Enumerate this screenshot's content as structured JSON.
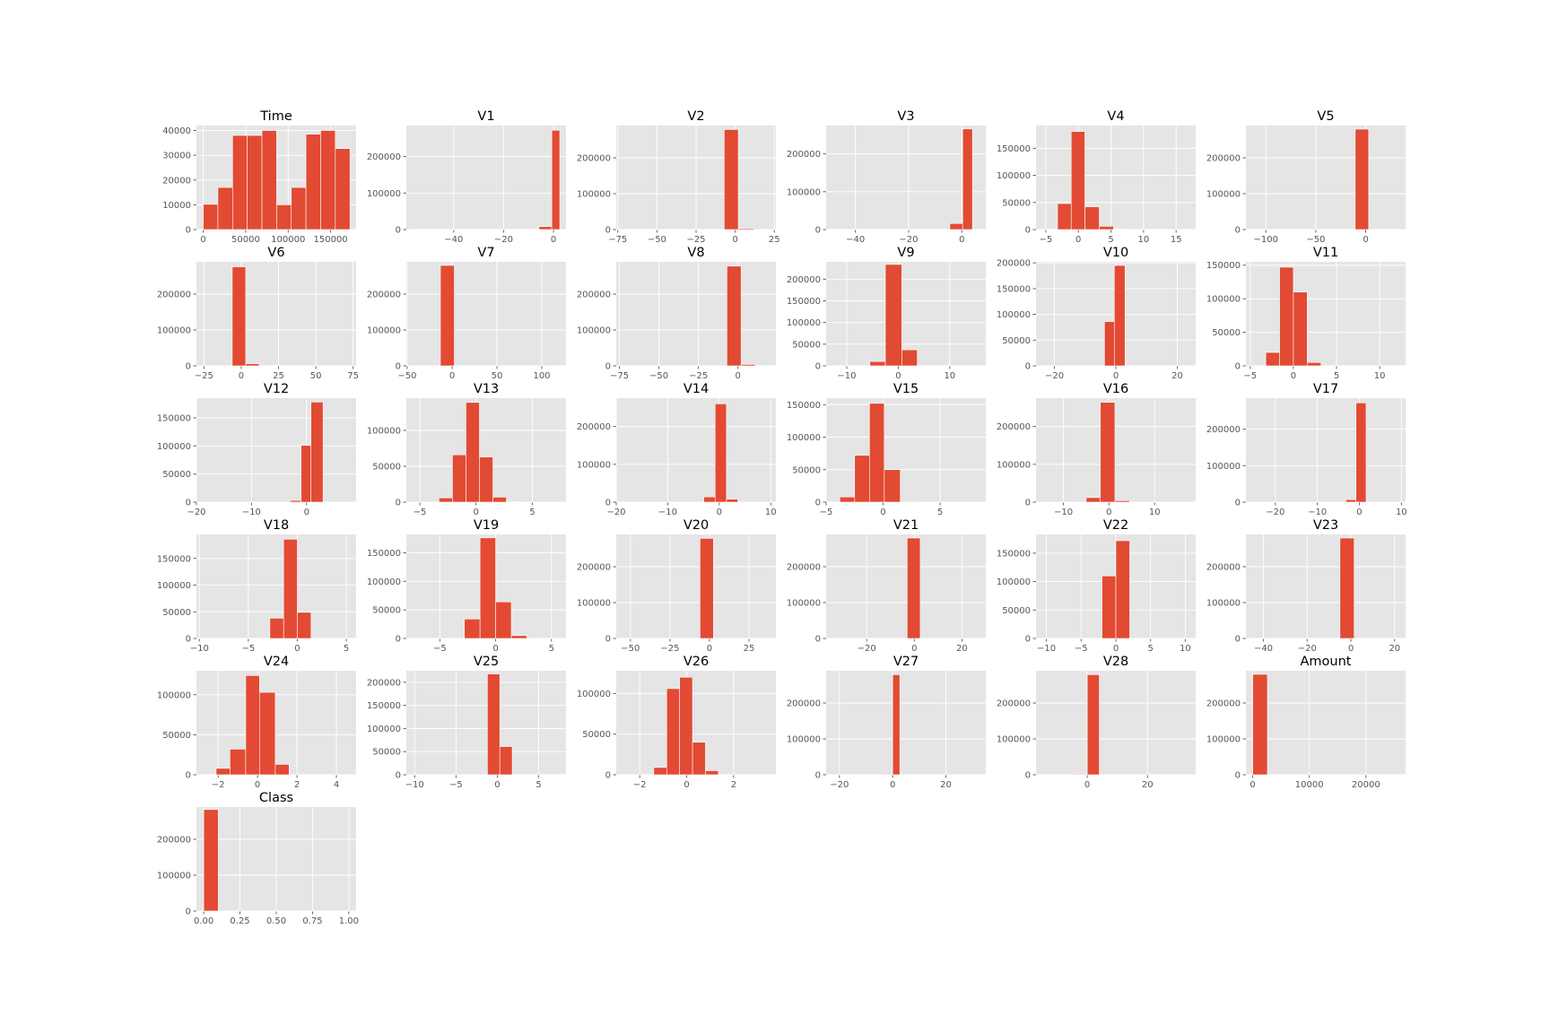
{
  "chart_data": [
    {
      "type": "bar",
      "title": "Time",
      "xlim": [
        -8000,
        180000
      ],
      "ylim": [
        0,
        42000
      ],
      "xticks": [
        0,
        50000,
        100000,
        150000
      ],
      "yticks": [
        0,
        10000,
        20000,
        30000,
        40000
      ],
      "bins": [
        [
          0,
          17280,
          10200
        ],
        [
          17280,
          34560,
          17000
        ],
        [
          34560,
          51840,
          38000
        ],
        [
          51840,
          69120,
          38000
        ],
        [
          69120,
          86400,
          40000
        ],
        [
          86400,
          103680,
          10000
        ],
        [
          103680,
          120960,
          17000
        ],
        [
          120960,
          138240,
          38500
        ],
        [
          138240,
          155520,
          40000
        ],
        [
          155520,
          172800,
          32700
        ]
      ]
    },
    {
      "type": "bar",
      "title": "V1",
      "xlim": [
        -59,
        5
      ],
      "ylim": [
        0,
        285000
      ],
      "xticks": [
        -40,
        -20,
        0
      ],
      "yticks": [
        0,
        100000,
        200000
      ],
      "bins": [
        [
          -5.8,
          -0.7,
          8000
        ],
        [
          -0.7,
          2.5,
          272000
        ]
      ]
    },
    {
      "type": "bar",
      "title": "V2",
      "xlim": [
        -76,
        26
      ],
      "ylim": [
        0,
        290000
      ],
      "xticks": [
        -75,
        -50,
        -25,
        0,
        25
      ],
      "yticks": [
        0,
        100000,
        200000
      ],
      "bins": [
        [
          -7,
          2,
          279000
        ],
        [
          2,
          12,
          3000
        ]
      ]
    },
    {
      "type": "bar",
      "title": "V3",
      "xlim": [
        -51,
        9
      ],
      "ylim": [
        0,
        275000
      ],
      "xticks": [
        -40,
        -20,
        0
      ],
      "yticks": [
        0,
        100000,
        200000
      ],
      "bins": [
        [
          -4.5,
          0.3,
          16000
        ],
        [
          0.3,
          4,
          266000
        ]
      ]
    },
    {
      "type": "bar",
      "title": "V4",
      "xlim": [
        -6.5,
        18
      ],
      "ylim": [
        0,
        192000
      ],
      "xticks": [
        -5,
        0,
        5,
        10,
        15
      ],
      "yticks": [
        0,
        50000,
        100000,
        150000
      ],
      "bins": [
        [
          -3.2,
          -1.1,
          48000
        ],
        [
          -1.1,
          1,
          181000
        ],
        [
          1,
          3.2,
          42000
        ],
        [
          3.2,
          5.4,
          6000
        ],
        [
          5.4,
          7.5,
          800
        ]
      ]
    },
    {
      "type": "bar",
      "title": "V5",
      "xlim": [
        -120,
        40
      ],
      "ylim": [
        0,
        290000
      ],
      "xticks": [
        -100,
        -50,
        0
      ],
      "yticks": [
        0,
        100000,
        200000
      ],
      "bins": [
        [
          -10.5,
          3,
          280000
        ],
        [
          3,
          16,
          500
        ]
      ]
    },
    {
      "type": "bar",
      "title": "V6",
      "xlim": [
        -30,
        77
      ],
      "ylim": [
        0,
        290000
      ],
      "xticks": [
        -25,
        0,
        25,
        50,
        75
      ],
      "yticks": [
        0,
        100000,
        200000
      ],
      "bins": [
        [
          -6,
          3,
          276000
        ],
        [
          3,
          12,
          6000
        ]
      ]
    },
    {
      "type": "bar",
      "title": "V7",
      "xlim": [
        -51,
        127
      ],
      "ylim": [
        0,
        290000
      ],
      "xticks": [
        -50,
        0,
        50,
        100
      ],
      "yticks": [
        0,
        100000,
        200000
      ],
      "bins": [
        [
          -13,
          2.5,
          280000
        ]
      ]
    },
    {
      "type": "bar",
      "title": "V8",
      "xlim": [
        -77,
        24
      ],
      "ylim": [
        0,
        290000
      ],
      "xticks": [
        -75,
        -50,
        -25,
        0
      ],
      "yticks": [
        0,
        100000,
        200000
      ],
      "bins": [
        [
          -7,
          2,
          278000
        ],
        [
          2,
          11,
          4000
        ]
      ]
    },
    {
      "type": "bar",
      "title": "V9",
      "xlim": [
        -14,
        17
      ],
      "ylim": [
        0,
        240000
      ],
      "xticks": [
        -10,
        0,
        10
      ],
      "yticks": [
        0,
        50000,
        100000,
        150000,
        200000
      ],
      "bins": [
        [
          -5.5,
          -2.5,
          10000
        ],
        [
          -2.5,
          0.7,
          234000
        ],
        [
          0.7,
          3.7,
          37000
        ]
      ]
    },
    {
      "type": "bar",
      "title": "V10",
      "xlim": [
        -26,
        26
      ],
      "ylim": [
        0,
        202000
      ],
      "xticks": [
        -20,
        0,
        20
      ],
      "yticks": [
        0,
        50000,
        100000,
        150000,
        200000
      ],
      "bins": [
        [
          -3.7,
          -0.5,
          86000
        ],
        [
          -0.5,
          3,
          195000
        ]
      ]
    },
    {
      "type": "bar",
      "title": "V11",
      "xlim": [
        -5.5,
        13
      ],
      "ylim": [
        0,
        155000
      ],
      "xticks": [
        -5,
        0,
        5,
        10
      ],
      "yticks": [
        0,
        50000,
        100000,
        150000
      ],
      "bins": [
        [
          -3.2,
          -1.6,
          20000
        ],
        [
          -1.6,
          0,
          147000
        ],
        [
          0,
          1.6,
          110000
        ],
        [
          1.6,
          3.2,
          5000
        ],
        [
          3.2,
          4.8,
          300
        ]
      ]
    },
    {
      "type": "bar",
      "title": "V12",
      "xlim": [
        -20,
        9
      ],
      "ylim": [
        0,
        185000
      ],
      "xticks": [
        -20,
        -10,
        0
      ],
      "yticks": [
        0,
        50000,
        100000,
        150000
      ],
      "bins": [
        [
          -3,
          -1,
          3000
        ],
        [
          -1,
          0.8,
          101000
        ],
        [
          0.8,
          3,
          178000
        ]
      ]
    },
    {
      "type": "bar",
      "title": "V13",
      "xlim": [
        -6.2,
        8
      ],
      "ylim": [
        0,
        145000
      ],
      "xticks": [
        -5,
        0,
        5
      ],
      "yticks": [
        0,
        50000,
        100000
      ],
      "bins": [
        [
          -3.3,
          -2.1,
          6000
        ],
        [
          -2.1,
          -0.9,
          66000
        ],
        [
          -0.9,
          0.3,
          139000
        ],
        [
          0.3,
          1.5,
          63000
        ],
        [
          1.5,
          2.7,
          7000
        ],
        [
          2.7,
          3.9,
          500
        ]
      ]
    },
    {
      "type": "bar",
      "title": "V14",
      "xlim": [
        -20,
        11
      ],
      "ylim": [
        0,
        275000
      ],
      "xticks": [
        -20,
        -10,
        0,
        10
      ],
      "yticks": [
        0,
        100000,
        200000
      ],
      "bins": [
        [
          -3,
          -0.8,
          14000
        ],
        [
          -0.8,
          1.4,
          260000
        ],
        [
          1.4,
          3.6,
          8000
        ]
      ]
    },
    {
      "type": "bar",
      "title": "V15",
      "xlim": [
        -5,
        9
      ],
      "ylim": [
        0,
        160000
      ],
      "xticks": [
        -5,
        0,
        5
      ],
      "yticks": [
        0,
        50000,
        100000,
        150000
      ],
      "bins": [
        [
          -3.8,
          -2.5,
          8000
        ],
        [
          -2.5,
          -1.2,
          72000
        ],
        [
          -1.2,
          0.1,
          152000
        ],
        [
          0.1,
          1.5,
          50000
        ],
        [
          1.5,
          2.8,
          1000
        ]
      ]
    },
    {
      "type": "bar",
      "title": "V16",
      "xlim": [
        -16,
        19
      ],
      "ylim": [
        0,
        275000
      ],
      "xticks": [
        -10,
        0,
        10
      ],
      "yticks": [
        0,
        100000,
        200000
      ],
      "bins": [
        [
          -5,
          -1.9,
          12000
        ],
        [
          -1.9,
          1.3,
          264000
        ],
        [
          1.3,
          4.5,
          4000
        ]
      ]
    },
    {
      "type": "bar",
      "title": "V17",
      "xlim": [
        -27,
        11
      ],
      "ylim": [
        0,
        285000
      ],
      "xticks": [
        -20,
        -10,
        0,
        10
      ],
      "yticks": [
        0,
        100000,
        200000
      ],
      "bins": [
        [
          -3.2,
          -0.8,
          7000
        ],
        [
          -0.8,
          1.6,
          272000
        ]
      ]
    },
    {
      "type": "bar",
      "title": "V18",
      "xlim": [
        -10.3,
        6
      ],
      "ylim": [
        0,
        195000
      ],
      "xticks": [
        -10,
        -5,
        0,
        5
      ],
      "yticks": [
        0,
        50000,
        100000,
        150000
      ],
      "bins": [
        [
          -2.8,
          -1.4,
          38000
        ],
        [
          -1.4,
          0,
          186000
        ],
        [
          0,
          1.4,
          49000
        ]
      ]
    },
    {
      "type": "bar",
      "title": "V19",
      "xlim": [
        -8,
        6.3
      ],
      "ylim": [
        0,
        182000
      ],
      "xticks": [
        -5,
        0,
        5
      ],
      "yticks": [
        0,
        50000,
        100000,
        150000
      ],
      "bins": [
        [
          -2.8,
          -1.4,
          34000
        ],
        [
          -1.4,
          0,
          176000
        ],
        [
          0,
          1.4,
          64000
        ],
        [
          1.4,
          2.8,
          5000
        ]
      ]
    },
    {
      "type": "bar",
      "title": "V20",
      "xlim": [
        -59,
        42
      ],
      "ylim": [
        0,
        290000
      ],
      "xticks": [
        -50,
        -25,
        0,
        25
      ],
      "yticks": [
        0,
        100000,
        200000
      ],
      "bins": [
        [
          -6,
          2.5,
          279000
        ]
      ]
    },
    {
      "type": "bar",
      "title": "V21",
      "xlim": [
        -37,
        30
      ],
      "ylim": [
        0,
        290000
      ],
      "xticks": [
        -20,
        0,
        20
      ],
      "yticks": [
        0,
        100000,
        200000
      ],
      "bins": [
        [
          -3,
          2.5,
          280000
        ]
      ]
    },
    {
      "type": "bar",
      "title": "V22",
      "xlim": [
        -11.5,
        11.5
      ],
      "ylim": [
        0,
        183000
      ],
      "xticks": [
        -10,
        -5,
        0,
        5,
        10
      ],
      "yticks": [
        0,
        50000,
        100000,
        150000
      ],
      "bins": [
        [
          -2,
          0,
          110000
        ],
        [
          0,
          2,
          172000
        ]
      ]
    },
    {
      "type": "bar",
      "title": "V23",
      "xlim": [
        -48,
        25
      ],
      "ylim": [
        0,
        290000
      ],
      "xticks": [
        -40,
        -20,
        0,
        20
      ],
      "yticks": [
        0,
        100000,
        200000
      ],
      "bins": [
        [
          -5,
          1.5,
          280000
        ]
      ]
    },
    {
      "type": "bar",
      "title": "V24",
      "xlim": [
        -3.1,
        5
      ],
      "ylim": [
        0,
        130000
      ],
      "xticks": [
        -2,
        0,
        2,
        4
      ],
      "yticks": [
        0,
        50000,
        100000
      ],
      "bins": [
        [
          -2.1,
          -1.4,
          8000
        ],
        [
          -1.4,
          -0.6,
          32000
        ],
        [
          -0.6,
          0.1,
          124000
        ],
        [
          0.1,
          0.9,
          103000
        ],
        [
          0.9,
          1.6,
          13000
        ]
      ]
    },
    {
      "type": "bar",
      "title": "V25",
      "xlim": [
        -11,
        8.3
      ],
      "ylim": [
        0,
        225000
      ],
      "xticks": [
        -10,
        -5,
        0,
        5
      ],
      "yticks": [
        0,
        50000,
        100000,
        150000,
        200000
      ],
      "bins": [
        [
          -1.2,
          0.3,
          218000
        ],
        [
          0.3,
          1.8,
          61000
        ]
      ]
    },
    {
      "type": "bar",
      "title": "V26",
      "xlim": [
        -3,
        3.8
      ],
      "ylim": [
        0,
        128000
      ],
      "xticks": [
        -2,
        0,
        2
      ],
      "yticks": [
        0,
        50000,
        100000
      ],
      "bins": [
        [
          -1.4,
          -0.85,
          9000
        ],
        [
          -0.85,
          -0.3,
          106000
        ],
        [
          -0.3,
          0.25,
          120000
        ],
        [
          0.25,
          0.8,
          40000
        ],
        [
          0.8,
          1.35,
          5000
        ]
      ]
    },
    {
      "type": "bar",
      "title": "V27",
      "xlim": [
        -25,
        35
      ],
      "ylim": [
        0,
        290000
      ],
      "xticks": [
        -20,
        0,
        20
      ],
      "yticks": [
        0,
        100000,
        200000
      ],
      "bins": [
        [
          -3,
          0,
          2000
        ],
        [
          0,
          2.7,
          279000
        ]
      ]
    },
    {
      "type": "bar",
      "title": "V28",
      "xlim": [
        -17,
        36
      ],
      "ylim": [
        0,
        290000
      ],
      "xticks": [
        0,
        20
      ],
      "yticks": [
        0,
        100000,
        200000
      ],
      "bins": [
        [
          -5,
          0,
          2000
        ],
        [
          0,
          4,
          279000
        ]
      ]
    },
    {
      "type": "bar",
      "title": "Amount",
      "xlim": [
        -1200,
        27000
      ],
      "ylim": [
        0,
        290000
      ],
      "xticks": [
        0,
        10000,
        20000
      ],
      "yticks": [
        0,
        100000,
        200000
      ],
      "bins": [
        [
          0,
          2600,
          280000
        ]
      ]
    },
    {
      "type": "bar",
      "title": "Class",
      "xlim": [
        -0.05,
        1.05
      ],
      "ylim": [
        0,
        290000
      ],
      "xticks": [
        "0.00",
        "0.25",
        "0.50",
        "0.75",
        "1.00"
      ],
      "yticks": [
        0,
        100000,
        200000
      ],
      "bins": [
        [
          0,
          0.1,
          283000
        ]
      ]
    }
  ]
}
